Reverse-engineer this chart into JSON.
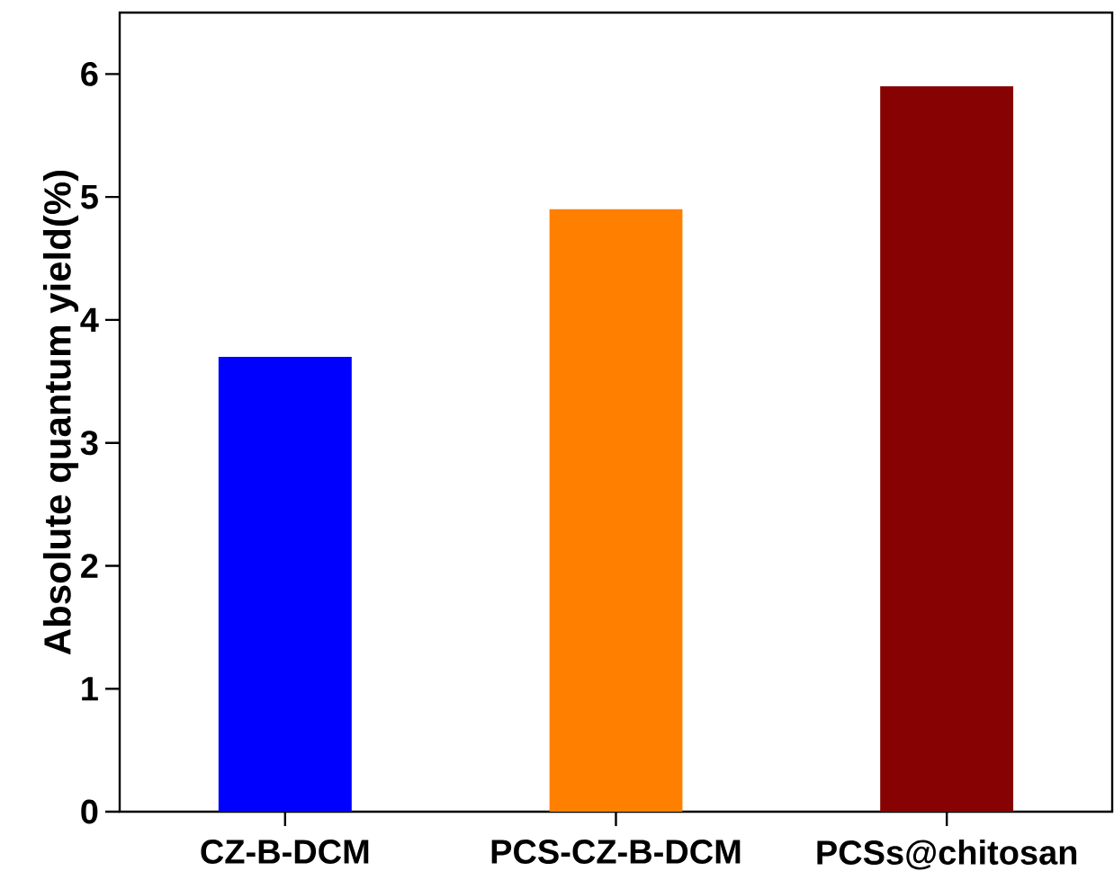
{
  "chart_data": {
    "type": "bar",
    "ylabel": "Absolute quantum yield(%)",
    "categories": [
      "CZ-B-DCM",
      "PCS-CZ-B-DCM",
      "PCSs@chitosan"
    ],
    "values": [
      3.7,
      4.9,
      5.9
    ],
    "colors": [
      "#0000ff",
      "#ff8000",
      "#870303"
    ],
    "ylim": [
      0,
      6.5
    ],
    "yticks": [
      0,
      1,
      2,
      3,
      4,
      5,
      6
    ]
  }
}
